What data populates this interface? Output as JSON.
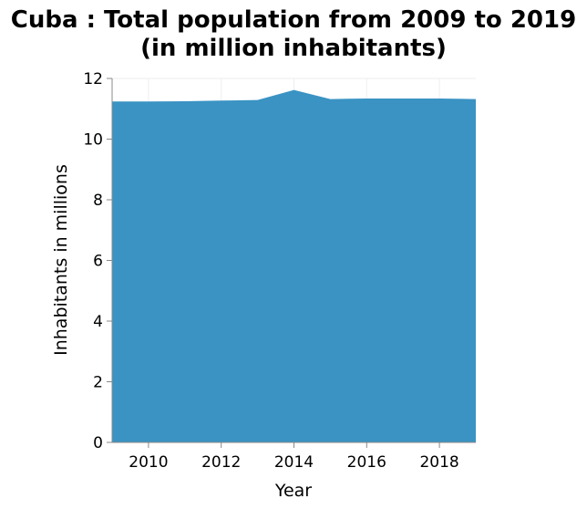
{
  "chart_data": {
    "type": "area",
    "title": "Cuba : Total population from 2009 to 2019",
    "subtitle": "(in million inhabitants)",
    "xlabel": "Year",
    "ylabel": "Inhabitants in millions",
    "x": [
      2009,
      2010,
      2011,
      2012,
      2013,
      2014,
      2015,
      2016,
      2017,
      2018,
      2019
    ],
    "series": [
      {
        "values": [
          11.24,
          11.24,
          11.25,
          11.27,
          11.29,
          11.62,
          11.32,
          11.34,
          11.34,
          11.34,
          11.32
        ]
      }
    ],
    "xticks": [
      2010,
      2012,
      2014,
      2016,
      2018
    ],
    "yticks": [
      0,
      2,
      4,
      6,
      8,
      10,
      12
    ],
    "xlim": [
      2009,
      2019
    ],
    "ylim": [
      0,
      12
    ],
    "grid": true,
    "colors": {
      "area": "#3a93c3",
      "grid": "#eeeeee",
      "axis": "#888888"
    }
  }
}
